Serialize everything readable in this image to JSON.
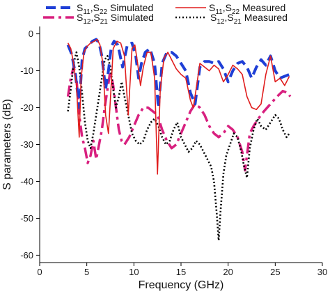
{
  "chart_data": {
    "type": "line",
    "xlabel": "Frequency (GHz)",
    "ylabel": "S parameters (dB)",
    "xlim": [
      0,
      30
    ],
    "ylim": [
      -62,
      2
    ],
    "xticks": [
      0,
      5,
      10,
      15,
      20,
      25,
      30
    ],
    "xtick_labels": [
      "0",
      "5",
      "10",
      "15",
      "20",
      "25",
      "30"
    ],
    "yticks": [
      0,
      -10,
      -20,
      -30,
      -40,
      -50,
      -60
    ],
    "ytick_labels": [
      "0",
      "-10",
      "-20",
      "-30",
      "-40",
      "-50",
      "-60"
    ],
    "grid": false,
    "legend_position": "top",
    "legend": [
      {
        "key": "s11_sim",
        "main": "S",
        "parts": [
          [
            "S",
            ""
          ],
          [
            "11",
            "sub"
          ],
          [
            ",S",
            ""
          ],
          [
            "22",
            "sub"
          ],
          [
            " Simulated",
            ""
          ]
        ]
      },
      {
        "key": "s11_meas",
        "parts": [
          [
            "S",
            ""
          ],
          [
            "11",
            "sub"
          ],
          [
            ",S",
            ""
          ],
          [
            "22",
            "sub"
          ],
          [
            " Measured",
            ""
          ]
        ]
      },
      {
        "key": "s12_sim",
        "parts": [
          [
            "S",
            ""
          ],
          [
            "12",
            "sub"
          ],
          [
            ",S",
            ""
          ],
          [
            "21",
            "sub"
          ],
          [
            " Simulated",
            ""
          ]
        ]
      },
      {
        "key": "s12_meas",
        "parts": [
          [
            "S",
            ""
          ],
          [
            "12",
            "sub"
          ],
          [
            ",S",
            ""
          ],
          [
            "21",
            "sub"
          ],
          [
            " Measured",
            ""
          ]
        ]
      }
    ],
    "series": [
      {
        "key": "s11_sim",
        "color": "#1f3fd6",
        "dash": "14 7",
        "width": 4,
        "x": [
          3.0,
          3.4,
          3.8,
          4.2,
          4.5,
          4.8,
          5.2,
          5.6,
          6.0,
          6.3,
          6.6,
          7.0,
          7.3,
          7.6,
          7.9,
          8.3,
          8.8,
          9.3,
          9.8,
          10.2,
          10.5,
          10.8,
          11.2,
          11.7,
          12.2,
          12.6,
          13.0,
          13.5,
          14.0,
          14.5,
          15.0,
          15.5,
          16.0,
          16.5,
          17.0,
          17.5,
          18.0,
          18.5,
          19.0,
          19.5,
          20.0,
          20.5,
          21.0,
          21.5,
          22.0,
          22.5,
          23.0,
          23.5,
          24.0,
          24.5,
          25.0,
          25.5,
          26.0,
          26.5
        ],
        "y": [
          -3.0,
          -5.5,
          -11.0,
          -20.0,
          -7.0,
          -4.0,
          -3.0,
          -2.0,
          -1.5,
          -2.5,
          -6.0,
          -15.0,
          -10.0,
          -3.5,
          -2.0,
          -3.0,
          -9.0,
          -3.0,
          -2.5,
          -6.0,
          -12.0,
          -8.0,
          -5.0,
          -4.0,
          -8.0,
          -20.0,
          -8.0,
          -5.0,
          -5.0,
          -6.0,
          -8.0,
          -10.0,
          -16.0,
          -19.0,
          -9.0,
          -7.5,
          -7.5,
          -8.0,
          -7.5,
          -9.5,
          -13.0,
          -10.0,
          -8.0,
          -7.5,
          -9.0,
          -12.0,
          -9.0,
          -7.0,
          -8.5,
          -6.0,
          -10.0,
          -12.0,
          -11.5,
          -11.0
        ]
      },
      {
        "key": "s11_meas",
        "color": "#e01e1e",
        "dash": "",
        "width": 1.6,
        "x": [
          3.0,
          3.3,
          3.6,
          3.9,
          4.2,
          4.4,
          4.7,
          5.0,
          5.4,
          5.8,
          6.1,
          6.4,
          6.7,
          7.0,
          7.3,
          7.5,
          7.8,
          8.2,
          8.6,
          9.0,
          9.4,
          9.8,
          10.1,
          10.4,
          10.7,
          11.0,
          11.4,
          11.8,
          12.2,
          12.5,
          12.8,
          13.2,
          13.6,
          14.0,
          14.5,
          15.0,
          15.5,
          16.0,
          16.3,
          16.6,
          17.0,
          17.5,
          18.0,
          18.5,
          19.0,
          19.5,
          20.0,
          20.5,
          21.0,
          21.5,
          22.0,
          22.5,
          23.0,
          23.5,
          24.0,
          24.5,
          25.0,
          25.5,
          26.0,
          26.5
        ],
        "y": [
          -2.5,
          -4.0,
          -8.0,
          -14.0,
          -28.0,
          -12.0,
          -5.0,
          -3.5,
          -2.5,
          -2.0,
          -1.5,
          -3.0,
          -8.0,
          -22.0,
          -27.0,
          -18.0,
          -4.0,
          -2.0,
          -2.5,
          -6.0,
          -22.0,
          -4.0,
          -3.0,
          -8.0,
          -14.0,
          -9.0,
          -5.0,
          -5.0,
          -12.0,
          -38.0,
          -15.0,
          -6.5,
          -5.0,
          -7.0,
          -9.5,
          -11.0,
          -12.0,
          -18.0,
          -20.0,
          -15.0,
          -8.0,
          -9.0,
          -10.0,
          -8.5,
          -9.5,
          -13.0,
          -11.0,
          -8.5,
          -9.5,
          -11.0,
          -17.0,
          -20.0,
          -20.5,
          -19.0,
          -11.0,
          -6.0,
          -13.0,
          -12.0,
          -14.0,
          -11.5
        ]
      },
      {
        "key": "s12_sim",
        "color": "#d8207f",
        "dash": "16 6 4 6",
        "width": 3.5,
        "x": [
          3.0,
          3.3,
          3.6,
          3.9,
          4.2,
          4.5,
          4.8,
          5.1,
          5.4,
          5.7,
          6.0,
          6.3,
          6.6,
          6.9,
          7.2,
          7.5,
          7.8,
          8.1,
          8.4,
          8.7,
          9.0,
          9.5,
          10.0,
          10.5,
          11.0,
          11.5,
          12.0,
          12.5,
          13.0,
          13.5,
          14.0,
          14.5,
          15.0,
          15.5,
          16.0,
          16.5,
          17.0,
          17.5,
          18.0,
          18.5,
          19.0,
          19.5,
          20.0,
          20.5,
          21.0,
          21.5,
          21.8,
          22.0,
          22.3,
          22.7,
          23.2,
          23.8,
          24.5,
          25.2,
          25.8,
          26.3,
          26.6
        ],
        "y": [
          -17.0,
          -12.0,
          -9.0,
          -12.0,
          -22.0,
          -28.0,
          -31.0,
          -35.0,
          -33.0,
          -29.0,
          -34.0,
          -30.0,
          -26.0,
          -20.0,
          -15.0,
          -10.0,
          -14.0,
          -20.0,
          -26.0,
          -29.0,
          -30.0,
          -28.0,
          -25.0,
          -22.0,
          -20.0,
          -20.0,
          -21.0,
          -22.0,
          -26.0,
          -29.0,
          -31.0,
          -30.0,
          -27.0,
          -24.0,
          -21.0,
          -19.0,
          -20.0,
          -22.0,
          -25.0,
          -27.0,
          -28.0,
          -27.0,
          -25.0,
          -26.0,
          -28.0,
          -32.0,
          -37.0,
          -33.0,
          -27.0,
          -25.0,
          -23.0,
          -21.0,
          -19.0,
          -17.0,
          -15.5,
          -16.0,
          -17.0
        ]
      },
      {
        "key": "s12_meas",
        "color": "#000000",
        "dash": "2 3",
        "width": 2.6,
        "x": [
          3.0,
          3.3,
          3.6,
          3.9,
          4.2,
          4.5,
          4.8,
          5.1,
          5.4,
          5.7,
          6.0,
          6.3,
          6.6,
          6.9,
          7.2,
          7.5,
          7.8,
          8.1,
          8.4,
          8.7,
          9.0,
          9.4,
          9.8,
          10.2,
          10.6,
          11.0,
          11.4,
          11.8,
          12.2,
          12.6,
          13.0,
          13.4,
          13.8,
          14.2,
          14.6,
          15.0,
          15.4,
          15.8,
          16.2,
          16.6,
          17.0,
          17.4,
          17.8,
          18.2,
          18.5,
          18.8,
          19.0,
          19.2,
          19.5,
          19.8,
          20.2,
          20.6,
          21.0,
          21.4,
          21.7,
          22.0,
          22.3,
          22.7,
          23.1,
          23.5,
          24.0,
          24.5,
          25.0,
          25.4,
          25.8,
          26.2,
          26.5
        ],
        "y": [
          -21.0,
          -15.0,
          -8.0,
          -5.0,
          -9.0,
          -16.0,
          -24.0,
          -29.0,
          -31.0,
          -27.0,
          -22.0,
          -17.0,
          -12.0,
          -7.0,
          -6.0,
          -9.0,
          -15.0,
          -20.0,
          -17.0,
          -13.0,
          -17.0,
          -22.0,
          -27.0,
          -29.0,
          -30.0,
          -29.0,
          -26.0,
          -24.0,
          -23.0,
          -25.0,
          -28.0,
          -30.0,
          -29.0,
          -26.0,
          -24.0,
          -28.0,
          -30.0,
          -32.0,
          -31.0,
          -29.0,
          -30.0,
          -32.0,
          -34.0,
          -36.0,
          -40.0,
          -49.0,
          -56.0,
          -48.0,
          -38.0,
          -33.0,
          -30.0,
          -27.0,
          -28.0,
          -32.0,
          -36.0,
          -39.0,
          -31.0,
          -26.0,
          -23.0,
          -25.0,
          -26.0,
          -24.0,
          -22.0,
          -23.0,
          -26.0,
          -28.0,
          -27.0
        ]
      }
    ]
  }
}
